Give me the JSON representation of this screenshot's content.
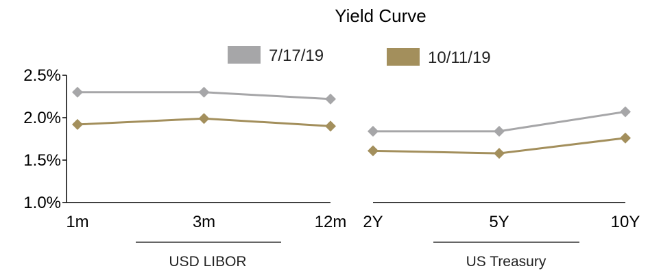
{
  "chart_data": {
    "type": "line",
    "title": "Yield Curve",
    "legend": {
      "placement": "top",
      "entries": [
        "7/17/19",
        "10/11/19"
      ]
    },
    "ylim": [
      1.0,
      2.5
    ],
    "yticks": [
      "1.0%",
      "1.5%",
      "2.0%",
      "2.5%"
    ],
    "ytick_values": [
      1.0,
      1.5,
      2.0,
      2.5
    ],
    "grid": false,
    "colors": {
      "7/17/19": "#a6a6a8",
      "10/11/19": "#a38f5c"
    },
    "panels": [
      {
        "group_label": "USD LIBOR",
        "categories": [
          "1m",
          "3m",
          "12m"
        ],
        "series": [
          {
            "name": "7/17/19",
            "values": [
              2.3,
              2.3,
              2.22
            ]
          },
          {
            "name": "10/11/19",
            "values": [
              1.92,
              1.99,
              1.9
            ]
          }
        ]
      },
      {
        "group_label": "US Treasury",
        "categories": [
          "2Y",
          "5Y",
          "10Y"
        ],
        "series": [
          {
            "name": "7/17/19",
            "values": [
              1.84,
              1.84,
              2.07
            ]
          },
          {
            "name": "10/11/19",
            "values": [
              1.61,
              1.58,
              1.76
            ]
          }
        ]
      }
    ]
  }
}
